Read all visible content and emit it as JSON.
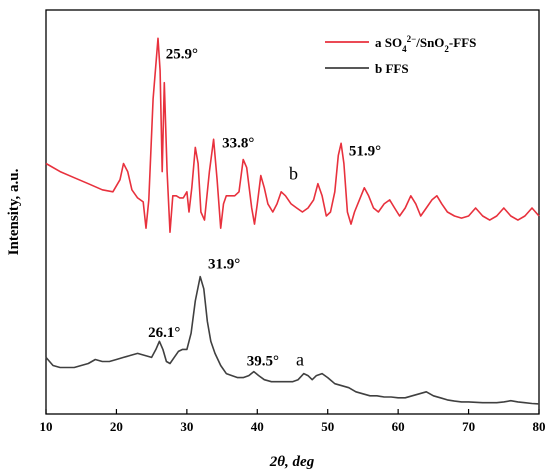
{
  "chart_data": {
    "type": "line",
    "xlabel": "2θ,  deg",
    "ylabel": "Intensity, a.u.",
    "xlim": [
      10,
      80
    ],
    "ylim": [
      0,
      100
    ],
    "xticks": [
      "10",
      "20",
      "30",
      "40",
      "50",
      "60",
      "70",
      "80"
    ],
    "legend_position": "top-right",
    "grid": false,
    "legend": [
      {
        "text": "a SO",
        "sub": "4",
        "sup": "2−",
        "text2": "/SnO",
        "sub2": "2",
        "text3": "-FFS",
        "color": "#e8313d"
      },
      {
        "text": "b FFS",
        "color": "#404040"
      }
    ],
    "curve_labels": [
      {
        "text": "b",
        "x": 44.5,
        "y": 58
      },
      {
        "text": "a",
        "x": 45.5,
        "y": 12
      }
    ],
    "annotations": [
      {
        "text": "25.9°",
        "x": 27.0,
        "y": 88
      },
      {
        "text": "33.8°",
        "x": 35.0,
        "y": 66
      },
      {
        "text": "51.9°",
        "x": 53.0,
        "y": 64
      },
      {
        "text": "31.9°",
        "x": 33.0,
        "y": 36
      },
      {
        "text": "26.1°",
        "x": 24.5,
        "y": 19
      },
      {
        "text": "39.5°",
        "x": 38.5,
        "y": 12
      }
    ],
    "series": [
      {
        "name": "a SO42−/SnO2-FFS",
        "color": "#e8313d",
        "points": [
          [
            10,
            62
          ],
          [
            12,
            60
          ],
          [
            14,
            58.5
          ],
          [
            16,
            57
          ],
          [
            18,
            55.5
          ],
          [
            19.5,
            55
          ],
          [
            20.5,
            58
          ],
          [
            21,
            62
          ],
          [
            21.6,
            60
          ],
          [
            22.2,
            55.5
          ],
          [
            23,
            53.5
          ],
          [
            23.8,
            52.5
          ],
          [
            24.2,
            46
          ],
          [
            24.6,
            53
          ],
          [
            25.2,
            78
          ],
          [
            25.9,
            93
          ],
          [
            26.2,
            85
          ],
          [
            26.5,
            60
          ],
          [
            26.8,
            82
          ],
          [
            27.2,
            60
          ],
          [
            27.6,
            45
          ],
          [
            28,
            54
          ],
          [
            28.5,
            54
          ],
          [
            29,
            53.5
          ],
          [
            29.5,
            53.5
          ],
          [
            30,
            55
          ],
          [
            30.3,
            50
          ],
          [
            30.7,
            56
          ],
          [
            31.2,
            66
          ],
          [
            31.6,
            62
          ],
          [
            32,
            50
          ],
          [
            32.5,
            48
          ],
          [
            33.2,
            60
          ],
          [
            33.8,
            68
          ],
          [
            34.3,
            58
          ],
          [
            34.8,
            46
          ],
          [
            35.2,
            52
          ],
          [
            35.6,
            54
          ],
          [
            36.2,
            54
          ],
          [
            36.8,
            54
          ],
          [
            37.4,
            55
          ],
          [
            38,
            63
          ],
          [
            38.5,
            61
          ],
          [
            39.2,
            51
          ],
          [
            39.6,
            47
          ],
          [
            40,
            52
          ],
          [
            40.5,
            59
          ],
          [
            41,
            56
          ],
          [
            41.5,
            52
          ],
          [
            42.2,
            50
          ],
          [
            42.8,
            52
          ],
          [
            43.4,
            55
          ],
          [
            44,
            54
          ],
          [
            44.8,
            52
          ],
          [
            45.6,
            51
          ],
          [
            46.4,
            50
          ],
          [
            47.2,
            51
          ],
          [
            48,
            53
          ],
          [
            48.6,
            57
          ],
          [
            49.2,
            54
          ],
          [
            49.8,
            49
          ],
          [
            50.4,
            50
          ],
          [
            51,
            55
          ],
          [
            51.5,
            64
          ],
          [
            51.9,
            67
          ],
          [
            52.3,
            62
          ],
          [
            52.8,
            50
          ],
          [
            53.3,
            47
          ],
          [
            53.8,
            50
          ],
          [
            54.5,
            53
          ],
          [
            55.2,
            56
          ],
          [
            55.8,
            54
          ],
          [
            56.5,
            51
          ],
          [
            57.2,
            50
          ],
          [
            58,
            52
          ],
          [
            58.8,
            53
          ],
          [
            59.5,
            51
          ],
          [
            60.2,
            49
          ],
          [
            61,
            51
          ],
          [
            61.8,
            54
          ],
          [
            62.5,
            52
          ],
          [
            63.2,
            49
          ],
          [
            64,
            51
          ],
          [
            64.8,
            53
          ],
          [
            65.5,
            54
          ],
          [
            66.2,
            52
          ],
          [
            67,
            50
          ],
          [
            68,
            49
          ],
          [
            69,
            48.5
          ],
          [
            70,
            49
          ],
          [
            71,
            51
          ],
          [
            72,
            49
          ],
          [
            73,
            48
          ],
          [
            74,
            49
          ],
          [
            75,
            51
          ],
          [
            76,
            49
          ],
          [
            77,
            48
          ],
          [
            78,
            49
          ],
          [
            79,
            51
          ],
          [
            80,
            49
          ]
        ]
      },
      {
        "name": "b FFS",
        "color": "#404040",
        "points": [
          [
            10,
            14
          ],
          [
            11,
            12
          ],
          [
            12,
            11.5
          ],
          [
            13,
            11.5
          ],
          [
            14,
            11.5
          ],
          [
            15,
            12
          ],
          [
            16,
            12.5
          ],
          [
            17,
            13.5
          ],
          [
            18,
            13
          ],
          [
            19,
            13
          ],
          [
            20,
            13.5
          ],
          [
            21,
            14
          ],
          [
            22,
            14.5
          ],
          [
            23,
            15
          ],
          [
            24,
            14.5
          ],
          [
            25,
            14
          ],
          [
            25.6,
            16
          ],
          [
            26.1,
            18
          ],
          [
            26.6,
            16
          ],
          [
            27.1,
            13
          ],
          [
            27.6,
            12.5
          ],
          [
            28.2,
            14
          ],
          [
            28.8,
            15.5
          ],
          [
            29.4,
            16
          ],
          [
            30,
            16
          ],
          [
            30.6,
            20
          ],
          [
            31.2,
            28
          ],
          [
            31.9,
            34
          ],
          [
            32.4,
            31
          ],
          [
            32.9,
            23
          ],
          [
            33.4,
            18
          ],
          [
            34,
            15
          ],
          [
            34.8,
            12
          ],
          [
            35.6,
            10
          ],
          [
            36.4,
            9.5
          ],
          [
            37.2,
            9
          ],
          [
            38,
            9
          ],
          [
            38.8,
            9.5
          ],
          [
            39.5,
            10.5
          ],
          [
            40.2,
            9.5
          ],
          [
            41,
            8.5
          ],
          [
            42,
            8
          ],
          [
            43,
            8
          ],
          [
            44,
            8
          ],
          [
            45,
            8
          ],
          [
            45.8,
            8.5
          ],
          [
            46.6,
            10
          ],
          [
            47.2,
            9.5
          ],
          [
            47.8,
            8.5
          ],
          [
            48.4,
            9.5
          ],
          [
            49.2,
            10
          ],
          [
            50,
            9
          ],
          [
            51,
            7.5
          ],
          [
            52,
            7
          ],
          [
            53,
            6.5
          ],
          [
            54,
            5.5
          ],
          [
            55,
            5
          ],
          [
            56,
            4.5
          ],
          [
            57,
            4.5
          ],
          [
            58,
            4.2
          ],
          [
            59,
            4.2
          ],
          [
            60,
            4
          ],
          [
            61,
            4
          ],
          [
            62,
            4.5
          ],
          [
            63,
            5
          ],
          [
            64,
            5.5
          ],
          [
            65,
            4.5
          ],
          [
            66,
            4
          ],
          [
            67,
            3.5
          ],
          [
            68,
            3.2
          ],
          [
            69,
            3
          ],
          [
            70,
            3
          ],
          [
            71,
            2.9
          ],
          [
            72,
            2.8
          ],
          [
            73,
            2.8
          ],
          [
            74,
            2.8
          ],
          [
            75,
            3
          ],
          [
            76,
            3.3
          ],
          [
            77,
            3
          ],
          [
            78,
            2.8
          ],
          [
            79,
            2.6
          ],
          [
            80,
            2.5
          ]
        ]
      }
    ]
  }
}
